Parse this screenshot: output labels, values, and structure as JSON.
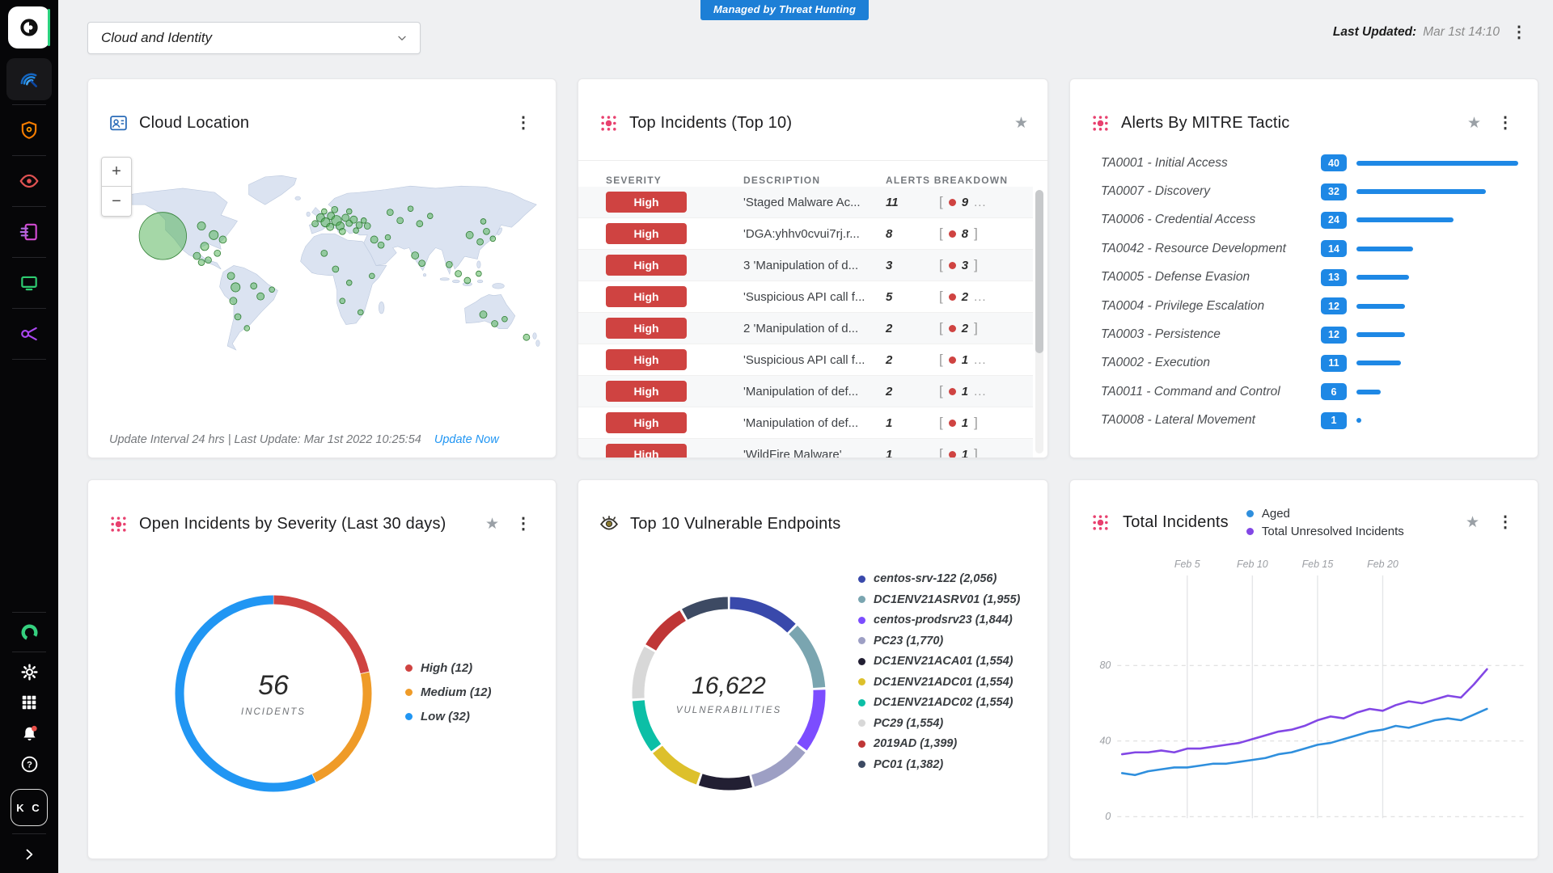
{
  "topbar": {
    "managed_badge": "Managed by Threat Hunting",
    "dashboard_select": "Cloud and Identity",
    "last_updated_label": "Last Updated:",
    "last_updated_value": "Mar 1st 14:10"
  },
  "sidebar": {
    "avatar_initials": "K C",
    "nav_icons": [
      "cortex-logo",
      "radar-icon",
      "shield-icon",
      "eye-icon",
      "report-icon",
      "monitor-icon",
      "key-icon"
    ],
    "tool_icons": [
      "ring-icon",
      "gear-icon",
      "apps-grid-icon",
      "bell-icon",
      "help-icon"
    ],
    "expand_icon": "chevron-right-icon"
  },
  "colors": {
    "accent_blue": "#1e88e5",
    "badge_red": "#cf4341",
    "link_blue": "#2196f3",
    "managed_badge_blue": "#1d7fd6",
    "marker_green": "#4caf50"
  },
  "panels": {
    "cloud_location": {
      "title": "Cloud Location",
      "zoom_in": "+",
      "zoom_out": "−",
      "footer": "Update Interval 24 hrs | Last Update: Mar 1st 2022 10:25:54",
      "update_link": "Update Now",
      "markers": [
        {
          "x": 150,
          "y": 152,
          "r": 52
        },
        {
          "x": 235,
          "y": 130,
          "r": 9
        },
        {
          "x": 262,
          "y": 150,
          "r": 10
        },
        {
          "x": 282,
          "y": 160,
          "r": 8
        },
        {
          "x": 242,
          "y": 175,
          "r": 9
        },
        {
          "x": 225,
          "y": 196,
          "r": 8
        },
        {
          "x": 250,
          "y": 205,
          "r": 7
        },
        {
          "x": 270,
          "y": 190,
          "r": 7
        },
        {
          "x": 235,
          "y": 210,
          "r": 7
        },
        {
          "x": 300,
          "y": 240,
          "r": 8
        },
        {
          "x": 310,
          "y": 265,
          "r": 10
        },
        {
          "x": 305,
          "y": 295,
          "r": 8
        },
        {
          "x": 315,
          "y": 330,
          "r": 7
        },
        {
          "x": 335,
          "y": 355,
          "r": 6
        },
        {
          "x": 365,
          "y": 285,
          "r": 8
        },
        {
          "x": 350,
          "y": 262,
          "r": 7
        },
        {
          "x": 390,
          "y": 270,
          "r": 6
        },
        {
          "x": 485,
          "y": 125,
          "r": 7
        },
        {
          "x": 497,
          "y": 112,
          "r": 9
        },
        {
          "x": 508,
          "y": 122,
          "r": 10
        },
        {
          "x": 520,
          "y": 108,
          "r": 8
        },
        {
          "x": 532,
          "y": 118,
          "r": 11
        },
        {
          "x": 518,
          "y": 132,
          "r": 8
        },
        {
          "x": 540,
          "y": 130,
          "r": 9
        },
        {
          "x": 552,
          "y": 112,
          "r": 8
        },
        {
          "x": 560,
          "y": 124,
          "r": 7
        },
        {
          "x": 545,
          "y": 142,
          "r": 7
        },
        {
          "x": 570,
          "y": 116,
          "r": 8
        },
        {
          "x": 582,
          "y": 128,
          "r": 7
        },
        {
          "x": 592,
          "y": 118,
          "r": 6
        },
        {
          "x": 505,
          "y": 98,
          "r": 6
        },
        {
          "x": 528,
          "y": 94,
          "r": 7
        },
        {
          "x": 560,
          "y": 98,
          "r": 6
        },
        {
          "x": 575,
          "y": 140,
          "r": 6
        },
        {
          "x": 600,
          "y": 130,
          "r": 7
        },
        {
          "x": 615,
          "y": 160,
          "r": 8
        },
        {
          "x": 630,
          "y": 172,
          "r": 7
        },
        {
          "x": 645,
          "y": 155,
          "r": 6
        },
        {
          "x": 505,
          "y": 190,
          "r": 7
        },
        {
          "x": 530,
          "y": 225,
          "r": 7
        },
        {
          "x": 560,
          "y": 255,
          "r": 6
        },
        {
          "x": 545,
          "y": 295,
          "r": 6
        },
        {
          "x": 585,
          "y": 320,
          "r": 6
        },
        {
          "x": 610,
          "y": 240,
          "r": 6
        },
        {
          "x": 650,
          "y": 100,
          "r": 7
        },
        {
          "x": 672,
          "y": 118,
          "r": 7
        },
        {
          "x": 695,
          "y": 92,
          "r": 6
        },
        {
          "x": 715,
          "y": 125,
          "r": 7
        },
        {
          "x": 738,
          "y": 108,
          "r": 6
        },
        {
          "x": 705,
          "y": 195,
          "r": 8
        },
        {
          "x": 720,
          "y": 212,
          "r": 7
        },
        {
          "x": 780,
          "y": 215,
          "r": 7
        },
        {
          "x": 800,
          "y": 235,
          "r": 7
        },
        {
          "x": 820,
          "y": 250,
          "r": 7
        },
        {
          "x": 845,
          "y": 235,
          "r": 6
        },
        {
          "x": 825,
          "y": 150,
          "r": 8
        },
        {
          "x": 848,
          "y": 165,
          "r": 7
        },
        {
          "x": 862,
          "y": 142,
          "r": 7
        },
        {
          "x": 876,
          "y": 158,
          "r": 6
        },
        {
          "x": 855,
          "y": 120,
          "r": 6
        },
        {
          "x": 855,
          "y": 325,
          "r": 8
        },
        {
          "x": 880,
          "y": 345,
          "r": 7
        },
        {
          "x": 902,
          "y": 335,
          "r": 6
        },
        {
          "x": 950,
          "y": 375,
          "r": 7
        }
      ]
    },
    "top_incidents": {
      "title": "Top Incidents (Top 10)",
      "columns": [
        "SEVERITY",
        "DESCRIPTION",
        "ALERTS BREAKDOWN"
      ],
      "rows": [
        {
          "severity": "High",
          "description": "'Staged Malware Ac...",
          "alerts": "11",
          "dot_value": "9",
          "more": true
        },
        {
          "severity": "High",
          "description": "'DGA:yhhv0cvui7rj.r...",
          "alerts": "8",
          "dot_value": "8",
          "more": false
        },
        {
          "severity": "High",
          "description": "3 'Manipulation of d...",
          "alerts": "3",
          "dot_value": "3",
          "more": false
        },
        {
          "severity": "High",
          "description": "'Suspicious API call f...",
          "alerts": "5",
          "dot_value": "2",
          "more": true
        },
        {
          "severity": "High",
          "description": "2 'Manipulation of d...",
          "alerts": "2",
          "dot_value": "2",
          "more": false
        },
        {
          "severity": "High",
          "description": "'Suspicious API call f...",
          "alerts": "2",
          "dot_value": "1",
          "more": true
        },
        {
          "severity": "High",
          "description": "'Manipulation of def...",
          "alerts": "2",
          "dot_value": "1",
          "more": true
        },
        {
          "severity": "High",
          "description": "'Manipulation of def...",
          "alerts": "1",
          "dot_value": "1",
          "more": false
        },
        {
          "severity": "High",
          "description": "'WildFire Malware'",
          "alerts": "1",
          "dot_value": "1",
          "more": false
        }
      ]
    },
    "mitre": {
      "title": "Alerts By MITRE Tactic"
    },
    "open_incidents": {
      "title": "Open Incidents by Severity (Last 30 days)"
    },
    "vulnerable_endpoints": {
      "title": "Top 10 Vulnerable Endpoints"
    },
    "total_incidents": {
      "title": "Total Incidents"
    }
  },
  "chart_data": [
    {
      "id": "severity_donut",
      "type": "pie",
      "title": "Open Incidents by Severity (Last 30 days)",
      "center_value": "56",
      "center_label": "INCIDENTS",
      "segments": [
        {
          "label": "High (12)",
          "value": 12,
          "color": "#cf4341"
        },
        {
          "label": "Medium (12)",
          "value": 12,
          "color": "#ef9b28"
        },
        {
          "label": "Low (32)",
          "value": 32,
          "color": "#2196f3"
        }
      ]
    },
    {
      "id": "endpoints_donut",
      "type": "pie",
      "title": "Top 10 Vulnerable Endpoints",
      "center_value": "16,622",
      "center_label": "VULNERABILITIES",
      "segments": [
        {
          "label": "centos-srv-122 (2,056)",
          "value": 2056,
          "color": "#3949ab"
        },
        {
          "label": "DC1ENV21ASRV01 (1,955)",
          "value": 1955,
          "color": "#7aa5b0"
        },
        {
          "label": "centos-prodsrv23 (1,844)",
          "value": 1844,
          "color": "#7c4dff"
        },
        {
          "label": "PC23 (1,770)",
          "value": 1770,
          "color": "#9d9fc4"
        },
        {
          "label": "DC1ENV21ACA01 (1,554)",
          "value": 1554,
          "color": "#221f33"
        },
        {
          "label": "DC1ENV21ADC01 (1,554)",
          "value": 1554,
          "color": "#ddc02b"
        },
        {
          "label": "DC1ENV21ADC02 (1,554)",
          "value": 1554,
          "color": "#0cbfa6"
        },
        {
          "label": "PC29 (1,554)",
          "value": 1554,
          "color": "#d8d8d8"
        },
        {
          "label": "2019AD (1,399)",
          "value": 1399,
          "color": "#bf3636"
        },
        {
          "label": "PC01 (1,382)",
          "value": 1382,
          "color": "#3d4a63"
        }
      ]
    },
    {
      "id": "incidents_line",
      "type": "line",
      "title": "Total Incidents",
      "x_gridlines": [
        {
          "label": "Feb 5",
          "day": 5
        },
        {
          "label": "Feb 10",
          "day": 10
        },
        {
          "label": "Feb 15",
          "day": 15
        },
        {
          "label": "Feb 20",
          "day": 20
        }
      ],
      "y_ticks": [
        0,
        40,
        80
      ],
      "ylim": [
        0,
        95
      ],
      "days": 29,
      "legend_position": "top",
      "series": [
        {
          "name": "Aged",
          "color": "#2f8fdd",
          "values": [
            23,
            22,
            24,
            25,
            26,
            26,
            27,
            28,
            28,
            29,
            30,
            31,
            33,
            34,
            36,
            38,
            39,
            41,
            43,
            45,
            46,
            48,
            47,
            49,
            51,
            52,
            51,
            54,
            57
          ]
        },
        {
          "name": "Total Unresolved Incidents",
          "color": "#8247e5",
          "values": [
            33,
            34,
            34,
            35,
            34,
            36,
            36,
            37,
            38,
            39,
            41,
            43,
            45,
            46,
            48,
            51,
            53,
            52,
            55,
            57,
            56,
            59,
            61,
            60,
            62,
            64,
            63,
            70,
            78
          ]
        }
      ]
    },
    {
      "id": "mitre_bars",
      "type": "bar",
      "title": "Alerts By MITRE Tactic",
      "max": 40,
      "categories": [
        "TA0001 - Initial Access",
        "TA0007 - Discovery",
        "TA0006 - Credential Access",
        "TA0042 - Resource Development",
        "TA0005 - Defense Evasion",
        "TA0004 - Privilege Escalation",
        "TA0003 - Persistence",
        "TA0002 - Execution",
        "TA0011 - Command and Control",
        "TA0008 - Lateral Movement"
      ],
      "values": [
        40,
        32,
        24,
        14,
        13,
        12,
        12,
        11,
        6,
        1
      ]
    }
  ]
}
